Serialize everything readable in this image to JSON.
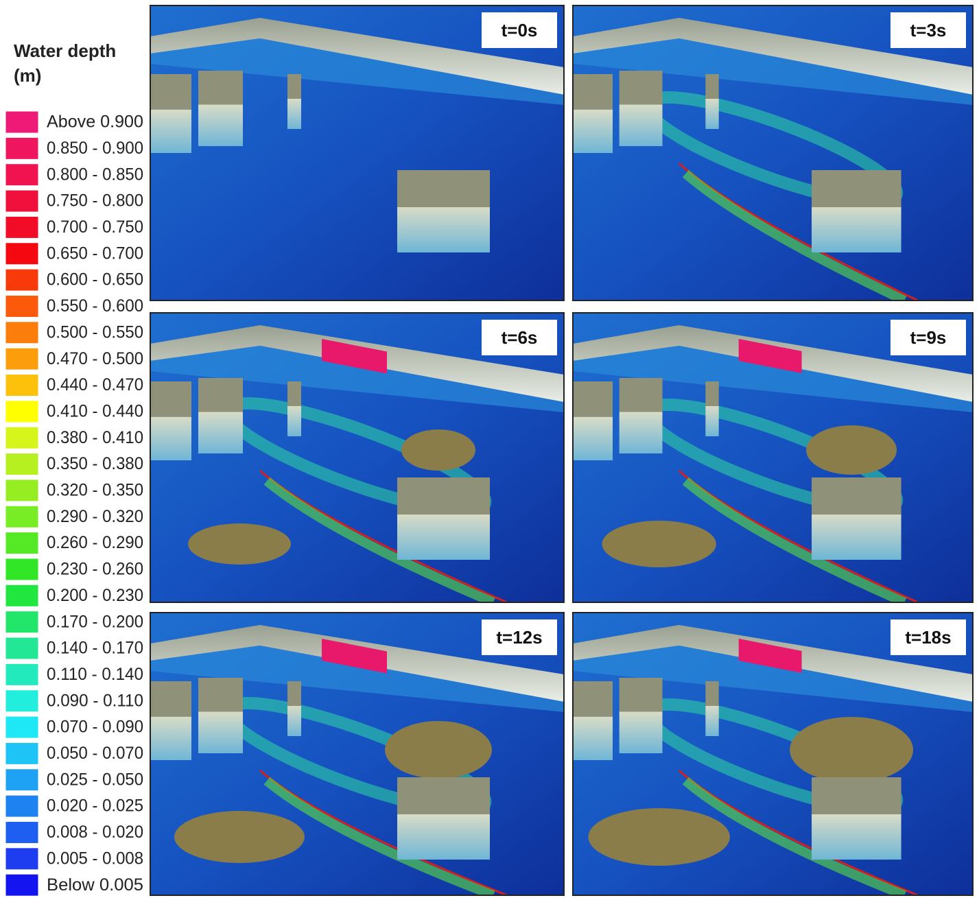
{
  "legend": {
    "title": "Water depth",
    "unit": "(m)",
    "items": [
      {
        "label": "Above  0.900",
        "color": "#ef1a78"
      },
      {
        "label": "0.850 - 0.900",
        "color": "#f0155f"
      },
      {
        "label": "0.800 - 0.850",
        "color": "#f01350"
      },
      {
        "label": "0.750 - 0.800",
        "color": "#f1103c"
      },
      {
        "label": "0.700 - 0.750",
        "color": "#f20c28"
      },
      {
        "label": "0.650 - 0.700",
        "color": "#f5080f"
      },
      {
        "label": "0.600 - 0.650",
        "color": "#f83a0a"
      },
      {
        "label": "0.550 - 0.600",
        "color": "#fa5a0a"
      },
      {
        "label": "0.500 - 0.550",
        "color": "#fb7d0b"
      },
      {
        "label": "0.470 - 0.500",
        "color": "#fc9e0b"
      },
      {
        "label": "0.440 - 0.470",
        "color": "#fdc00b"
      },
      {
        "label": "0.410 - 0.440",
        "color": "#ffff00"
      },
      {
        "label": "0.380 - 0.410",
        "color": "#d6f51a"
      },
      {
        "label": "0.350 - 0.380",
        "color": "#b6f020"
      },
      {
        "label": "0.320 - 0.350",
        "color": "#96ee22"
      },
      {
        "label": "0.290 - 0.320",
        "color": "#78ec24"
      },
      {
        "label": "0.260 - 0.290",
        "color": "#55e825"
      },
      {
        "label": "0.230 - 0.260",
        "color": "#30e626"
      },
      {
        "label": "0.200 - 0.230",
        "color": "#22e640"
      },
      {
        "label": "0.170 - 0.200",
        "color": "#22e66a"
      },
      {
        "label": "0.140 - 0.170",
        "color": "#22e896"
      },
      {
        "label": "0.110 - 0.140",
        "color": "#22eabd"
      },
      {
        "label": "0.090 - 0.110",
        "color": "#22eedd"
      },
      {
        "label": "0.070 - 0.090",
        "color": "#1ee8f5"
      },
      {
        "label": "0.050 - 0.070",
        "color": "#1ec4f5"
      },
      {
        "label": "0.025 - 0.050",
        "color": "#1ea2f3"
      },
      {
        "label": "0.020 - 0.025",
        "color": "#1e82f0"
      },
      {
        "label": "0.008 - 0.020",
        "color": "#1e5ef0"
      },
      {
        "label": "0.005 - 0.008",
        "color": "#1e3cf0"
      },
      {
        "label": "Below  0.005",
        "color": "#1414f0"
      }
    ]
  },
  "panels": [
    {
      "label": "t=0s"
    },
    {
      "label": "t=3s"
    },
    {
      "label": "t=6s"
    },
    {
      "label": "t=9s"
    },
    {
      "label": "t=12s"
    },
    {
      "label": "t=18s"
    }
  ]
}
